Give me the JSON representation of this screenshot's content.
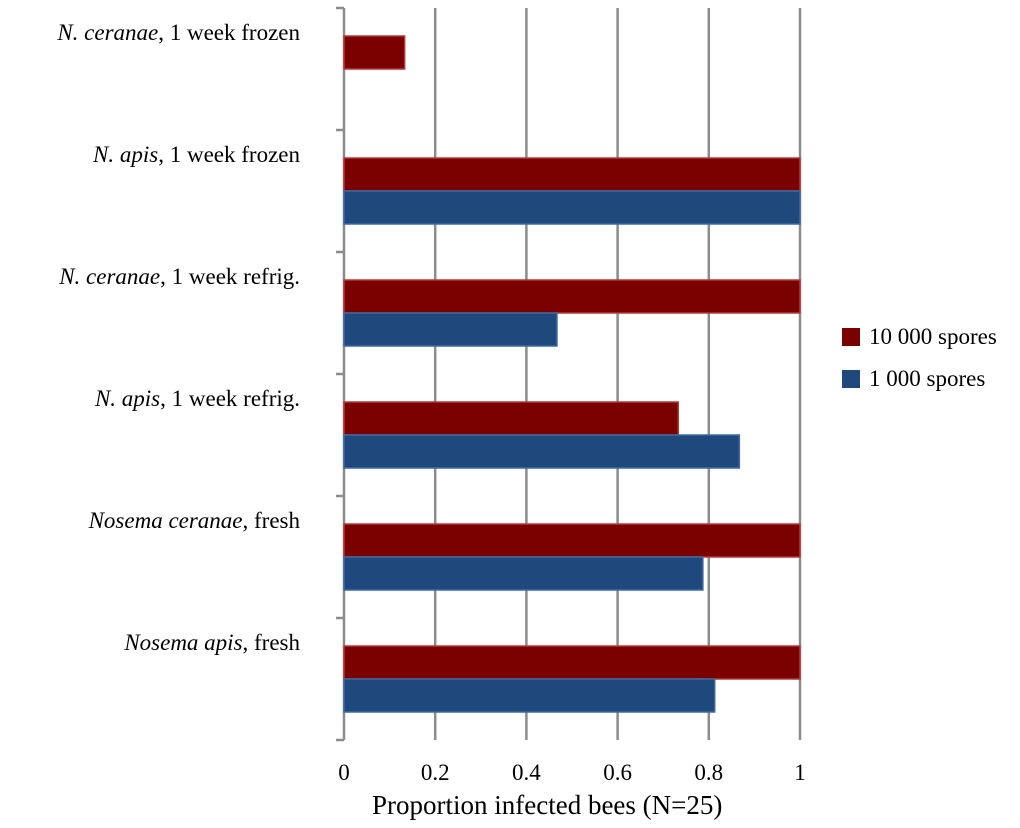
{
  "chart_data": {
    "type": "bar",
    "orientation": "horizontal",
    "categories": [
      {
        "species": "Nosema apis",
        "rest": ", fresh"
      },
      {
        "species": "Nosema ceranae",
        "rest": ", fresh"
      },
      {
        "species": "N. apis",
        "rest": ", 1 week refrig."
      },
      {
        "species": "N. ceranae",
        "rest": ", 1 week refrig."
      },
      {
        "species": "N. apis",
        "rest": ", 1 week frozen"
      },
      {
        "species": "N. ceranae",
        "rest": ", 1 week frozen"
      }
    ],
    "series": [
      {
        "name": "10 000 spores",
        "color": "#7b0000",
        "values": [
          1.0,
          1.0,
          0.733,
          1.0,
          1.0,
          0.133
        ]
      },
      {
        "name": "1 000 spores",
        "color": "#1f497d",
        "values": [
          0.813,
          0.787,
          0.867,
          0.467,
          1.0,
          0
        ]
      }
    ],
    "xlabel": "Proportion infected bees (N=25)",
    "xlim": [
      0,
      1
    ],
    "xticks": [
      "0",
      "0.2",
      "0.4",
      "0.6",
      "0.8",
      "1"
    ],
    "grid": "vertical",
    "legend": "right"
  }
}
